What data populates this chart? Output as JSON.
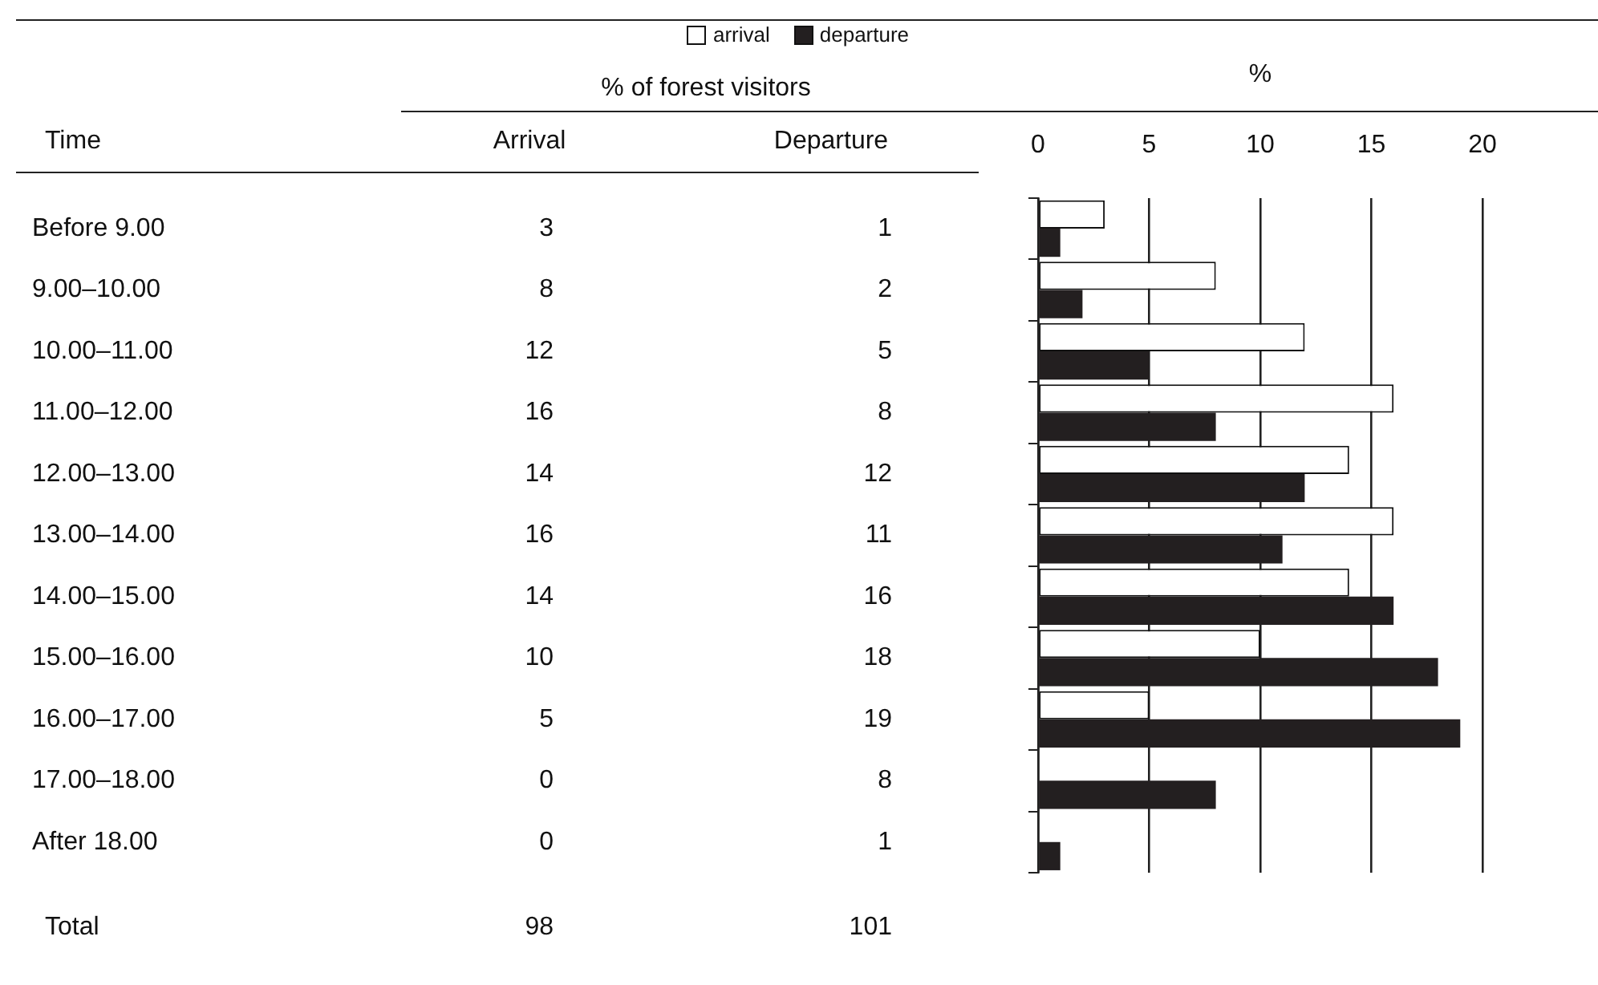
{
  "chart_data": {
    "type": "bar",
    "orientation": "horizontal",
    "ylabel": "Time",
    "x2label": "%",
    "categories": [
      "Before 9.00",
      "9.00–10.00",
      "10.00–11.00",
      "11.00–12.00",
      "12.00–13.00",
      "13.00–14.00",
      "14.00–15.00",
      "15.00–16.00",
      "16.00–17.00",
      "17.00–18.00",
      "After 18.00"
    ],
    "series": [
      {
        "name": "arrival",
        "color": "#ffffff",
        "values": [
          3,
          8,
          12,
          16,
          14,
          16,
          14,
          10,
          5,
          0,
          0
        ]
      },
      {
        "name": "departure",
        "color": "#231f20",
        "values": [
          1,
          2,
          5,
          8,
          12,
          11,
          16,
          18,
          19,
          8,
          1
        ]
      }
    ],
    "x2lim": [
      0,
      20
    ],
    "x2ticks": [
      0,
      5,
      10,
      15,
      20
    ],
    "grid": "x",
    "legend": "top",
    "data_labels": true,
    "annotations": [
      "% of forest visitors",
      "Arrival",
      "Departure",
      "Total",
      "98",
      "101"
    ]
  }
}
